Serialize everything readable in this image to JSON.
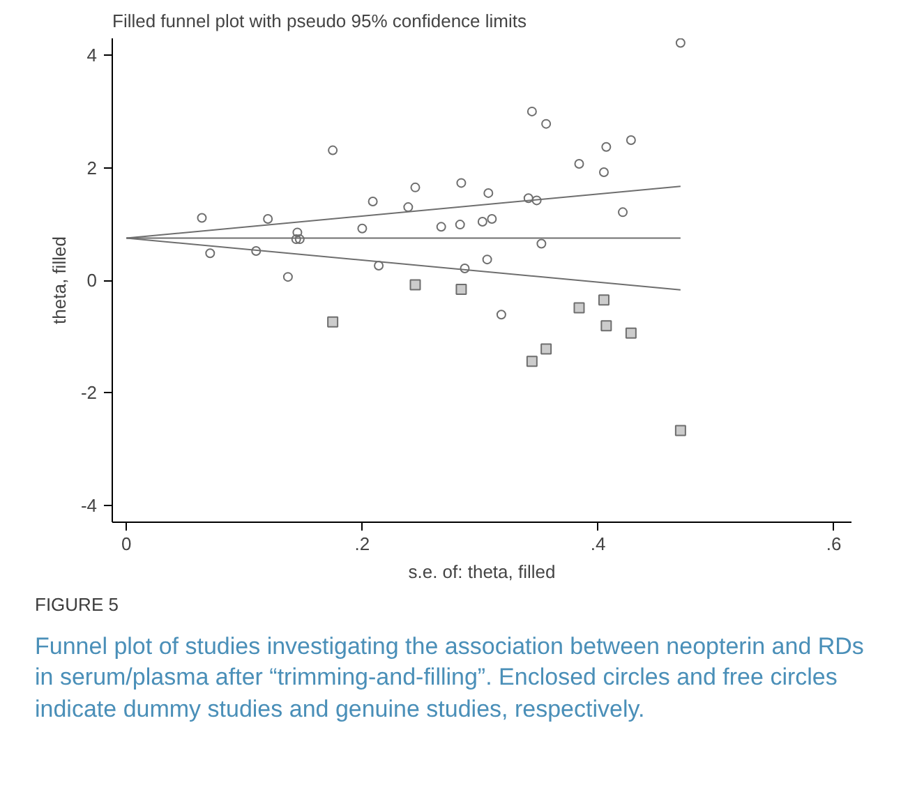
{
  "chart_data": {
    "type": "scatter",
    "title": "Filled funnel plot with pseudo 95% confidence limits",
    "xlabel": "s.e. of: theta, filled",
    "ylabel": "theta, filled",
    "xlim": [
      -0.012,
      0.615
    ],
    "ylim": [
      -4.3,
      4.3
    ],
    "xticks": [
      {
        "value": 0,
        "label": "0"
      },
      {
        "value": 0.2,
        "label": ".2"
      },
      {
        "value": 0.4,
        "label": ".4"
      },
      {
        "value": 0.6,
        "label": ".6"
      }
    ],
    "yticks": [
      -4,
      -2,
      0,
      2,
      4
    ],
    "grid": false,
    "series": [
      {
        "marker": "circle",
        "color": "#6e6e6e",
        "x": [
          0.064,
          0.071,
          0.11,
          0.12,
          0.137,
          0.145,
          0.144,
          0.147,
          0.175,
          0.2,
          0.209,
          0.214,
          0.239,
          0.245,
          0.267,
          0.284,
          0.283,
          0.287,
          0.307,
          0.302,
          0.31,
          0.344,
          0.356,
          0.341,
          0.348,
          0.352,
          0.306,
          0.318,
          0.384,
          0.405,
          0.407,
          0.428,
          0.421,
          0.47
        ],
        "values": [
          1.11,
          0.48,
          0.52,
          1.09,
          0.06,
          0.85,
          0.73,
          0.73,
          2.31,
          0.92,
          1.4,
          0.26,
          1.3,
          1.65,
          0.95,
          1.73,
          0.99,
          0.21,
          1.55,
          1.04,
          1.09,
          3.0,
          2.78,
          1.46,
          1.42,
          0.65,
          0.37,
          -0.61,
          2.07,
          1.92,
          2.37,
          2.49,
          1.21,
          4.22
        ]
      },
      {
        "marker": "square",
        "color": "#6e6e6e",
        "x": [
          0.245,
          0.284,
          0.175,
          0.384,
          0.405,
          0.407,
          0.428,
          0.356,
          0.344,
          0.47
        ],
        "values": [
          -0.08,
          -0.16,
          -0.74,
          -0.49,
          -0.35,
          -0.81,
          -0.94,
          -1.22,
          -1.44,
          -2.67
        ]
      },
      {
        "type": "line",
        "color": "#6e6e6e",
        "x": [
          0,
          0.47
        ],
        "values": [
          0.75,
          1.67
        ]
      },
      {
        "type": "line",
        "color": "#6e6e6e",
        "x": [
          0,
          0.47
        ],
        "values": [
          0.75,
          0.75
        ]
      },
      {
        "type": "line",
        "color": "#6e6e6e",
        "x": [
          0,
          0.47
        ],
        "values": [
          0.75,
          -0.17
        ]
      }
    ],
    "annotations": [
      "FIGURE 5",
      "Funnel plot of studies investigating the association between neopterin and RDs in serum/plasma after “trimming-and-filling”. Enclosed circles and free circles indicate dummy studies and genuine studies, respectively."
    ]
  }
}
